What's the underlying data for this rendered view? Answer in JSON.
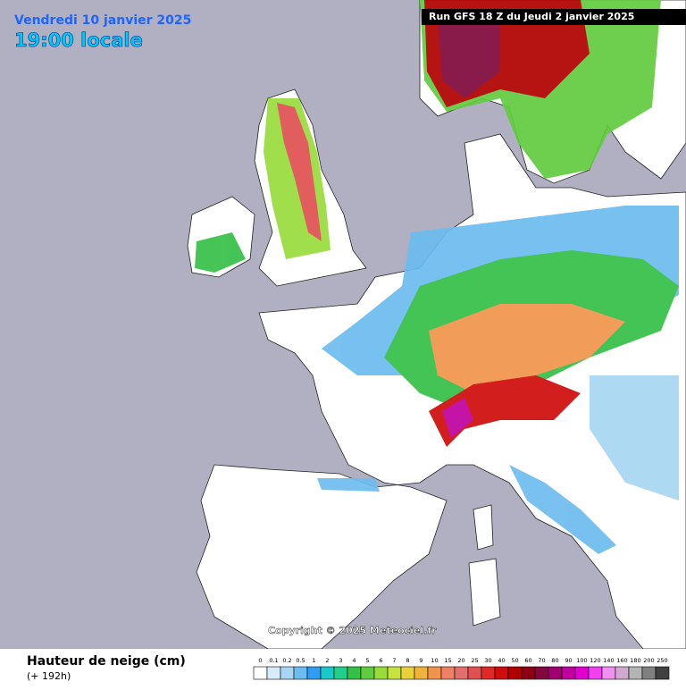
{
  "header": {
    "date": "Vendredi 10 janvier 2025",
    "time": "19:00 locale",
    "run": "Run GFS 18 Z du Jeudi 2 janvier 2025"
  },
  "copyright": "Copyright © 2025 Meteociel.fr",
  "legend": {
    "title": "Hauteur de neige (cm)",
    "subtitle": "(+ 192h)",
    "scale": [
      {
        "label": 0,
        "color": "#ffffff"
      },
      {
        "label": 0.1,
        "color": "#d8ebf8"
      },
      {
        "label": 0.2,
        "color": "#a8d6f2"
      },
      {
        "label": 0.5,
        "color": "#6cbcf0"
      },
      {
        "label": 1,
        "color": "#2f9ef2"
      },
      {
        "label": 2,
        "color": "#1bc8c8"
      },
      {
        "label": 3,
        "color": "#22cf88"
      },
      {
        "label": 4,
        "color": "#36c048"
      },
      {
        "label": 5,
        "color": "#62cc40"
      },
      {
        "label": 6,
        "color": "#98dc3c"
      },
      {
        "label": 7,
        "color": "#c6e23c"
      },
      {
        "label": 8,
        "color": "#e8d23c"
      },
      {
        "label": 9,
        "color": "#f0b23c"
      },
      {
        "label": 10,
        "color": "#f0944c"
      },
      {
        "label": 15,
        "color": "#ee8064"
      },
      {
        "label": 20,
        "color": "#e07070"
      },
      {
        "label": 25,
        "color": "#e05050"
      },
      {
        "label": 30,
        "color": "#e02a2a"
      },
      {
        "label": 40,
        "color": "#d00c0c"
      },
      {
        "label": 50,
        "color": "#b00000"
      },
      {
        "label": 60,
        "color": "#900014"
      },
      {
        "label": 70,
        "color": "#80083c"
      },
      {
        "label": 80,
        "color": "#a00070"
      },
      {
        "label": 90,
        "color": "#c000a0"
      },
      {
        "label": 100,
        "color": "#e000d0"
      },
      {
        "label": 120,
        "color": "#f040f0"
      },
      {
        "label": 140,
        "color": "#f090f0"
      },
      {
        "label": 160,
        "color": "#d0a8d0"
      },
      {
        "label": 180,
        "color": "#b4b4b4"
      },
      {
        "label": 200,
        "color": "#808080"
      },
      {
        "label": 250,
        "color": "#404040"
      }
    ]
  }
}
